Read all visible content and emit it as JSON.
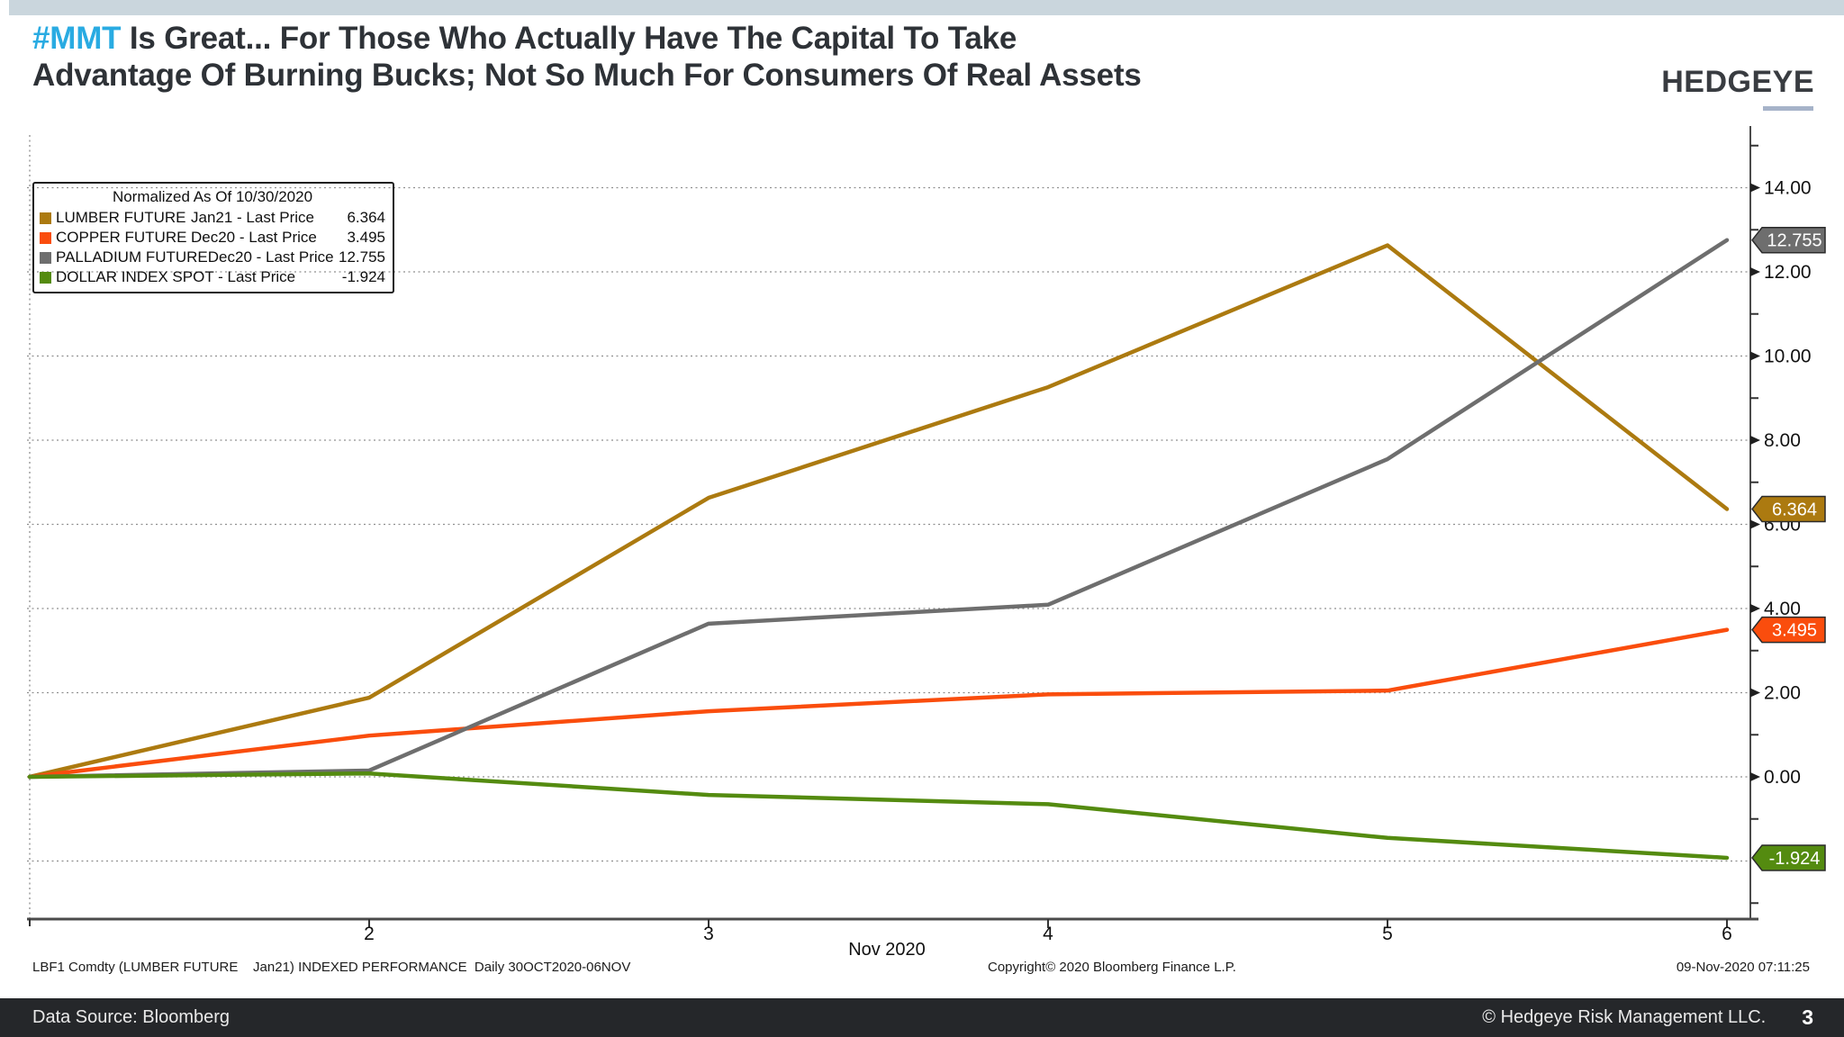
{
  "header": {
    "top_bar_color": "#CAD6DD",
    "title_highlight": "#MMT",
    "title_rest_line1": " Is Great... For Those Who Actually Have The Capital To Take",
    "title_line2": "Advantage Of Burning Bucks; Not So Much For Consumers Of Real Assets",
    "highlight_color": "#29ABE2",
    "logo_text": "HEDGEYE"
  },
  "legend": {
    "title": "Normalized As Of 10/30/2020",
    "items": [
      {
        "name": "LUMBER FUTURE",
        "detail": "Jan21 - Last Price",
        "value": "6.364",
        "color": "#AC7A10"
      },
      {
        "name": "COPPER FUTURE",
        "detail": "Dec20 - Last Price",
        "value": "3.495",
        "color": "#FA4D0D"
      },
      {
        "name": "PALLADIUM FUTURE",
        "detail": "Dec20 - Last Price",
        "value": "12.755",
        "color": "#6E6E6E"
      },
      {
        "name": "DOLLAR INDEX SPOT - Last Price",
        "detail": "",
        "value": "-1.924",
        "color": "#548B10"
      }
    ]
  },
  "chart_data": {
    "type": "line",
    "title": "Normalized As Of 10/30/2020",
    "x": [
      "Oct 30",
      "Nov 2",
      "Nov 3",
      "Nov 4",
      "Nov 5",
      "Nov 6"
    ],
    "x_tick_labels": [
      "2",
      "3",
      "4",
      "5",
      "6"
    ],
    "x_axis_title": "Nov 2020",
    "ylim": [
      -3.4,
      15.4
    ],
    "grid": "dotted horizontal",
    "legend_position": "top-left",
    "y_axis_side": "right",
    "y_tick_values": [
      14,
      12,
      10,
      8,
      6,
      4,
      2,
      0
    ],
    "y_tick_labels": [
      "14.00",
      "12.00",
      "10.00",
      "8.00",
      "6.00",
      "4.00",
      "2.00",
      "0.00"
    ],
    "grid_values": [
      14,
      12,
      10,
      8,
      6,
      4,
      2,
      0,
      -2
    ],
    "minor_tick_values": [
      15,
      13,
      11,
      9,
      7,
      5,
      3,
      1,
      -1,
      -3
    ],
    "series": [
      {
        "name": "LUMBER FUTURE Jan21 - Last Price",
        "color": "#AC7A10",
        "values": [
          0,
          1.88,
          6.63,
          9.26,
          12.63,
          6.364
        ],
        "last_label": "6.364"
      },
      {
        "name": "COPPER FUTURE Dec20 - Last Price",
        "color": "#FA4D0D",
        "values": [
          0,
          0.98,
          1.56,
          1.96,
          2.05,
          3.495
        ],
        "last_label": "3.495"
      },
      {
        "name": "PALLADIUM FUTURE Dec20 - Last Price",
        "color": "#6E6E6E",
        "values": [
          0,
          0.15,
          3.64,
          4.09,
          7.55,
          12.755
        ],
        "last_label": "12.755"
      },
      {
        "name": "DOLLAR INDEX SPOT - Last Price",
        "color": "#548B10",
        "values": [
          0,
          0.08,
          -0.43,
          -0.65,
          -1.45,
          -1.924
        ],
        "last_label": "-1.924"
      }
    ]
  },
  "footnotes": {
    "left": "LBF1 Comdty (LUMBER FUTURE    Jan21) INDEXED PERFORMANCE  Daily 30OCT2020-06NOV",
    "center": "Copyright© 2020 Bloomberg Finance L.P.",
    "right": "09-Nov-2020 07:11:25"
  },
  "footer": {
    "data_source": "Data Source: Bloomberg",
    "copyright": "© Hedgeye Risk Management LLC.",
    "page_number": "3"
  }
}
